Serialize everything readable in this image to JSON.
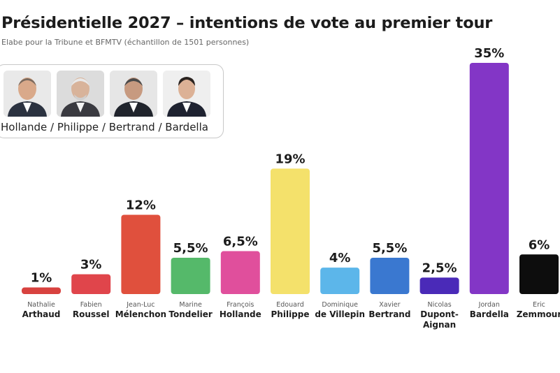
{
  "header": {
    "title": "Présidentielle 2027 – intentions de vote au premier tour",
    "subtitle": "Elabe pour la Tribune et  BFMTV (échantillon de 1501 personnes)"
  },
  "scenario": {
    "label": "Hollande / Philippe / Bertrand / Bardella",
    "photos": [
      "Hollande",
      "Philippe",
      "Bertrand",
      "Bardella"
    ]
  },
  "chart_data": {
    "type": "bar",
    "title": "Présidentielle 2027 – intentions de vote au premier tour",
    "xlabel": "",
    "ylabel": "",
    "ylim": [
      0,
      35
    ],
    "grid": false,
    "categories": [
      "Nathalie Arthaud",
      "Fabien Roussel",
      "Jean-Luc Mélenchon",
      "Marine Tondelier",
      "François Hollande",
      "Edouard Philippe",
      "Dominique de Villepin",
      "Xavier Bertrand",
      "Nicolas Dupont-Aignan",
      "Jordan Bardella",
      "Eric Zemmour"
    ],
    "values": [
      1,
      3,
      12,
      5.5,
      6.5,
      19,
      4,
      5.5,
      2.5,
      35,
      6
    ],
    "value_labels": [
      "1%",
      "3%",
      "12%",
      "5,5%",
      "6,5%",
      "19%",
      "4%",
      "5,5%",
      "2,5%",
      "35%",
      "6%"
    ],
    "first_names": [
      "Nathalie",
      "Fabien",
      "Jean-Luc",
      "Marine",
      "François",
      "Edouard",
      "Dominique",
      "Xavier",
      "Nicolas",
      "Jordan",
      "Eric"
    ],
    "last_names": [
      "Arthaud",
      "Roussel",
      "Mélenchon",
      "Tondelier",
      "Hollande",
      "Philippe",
      "de Villepin",
      "Bertrand",
      "Dupont-\nAignan",
      "Bardella",
      "Zemmour"
    ],
    "colors": [
      "#d8423f",
      "#e0454b",
      "#e0503d",
      "#55b96a",
      "#e04f9c",
      "#f4e16b",
      "#5cb6ea",
      "#3a78d0",
      "#4a2ab8",
      "#8336c6",
      "#0d0d0d"
    ]
  }
}
